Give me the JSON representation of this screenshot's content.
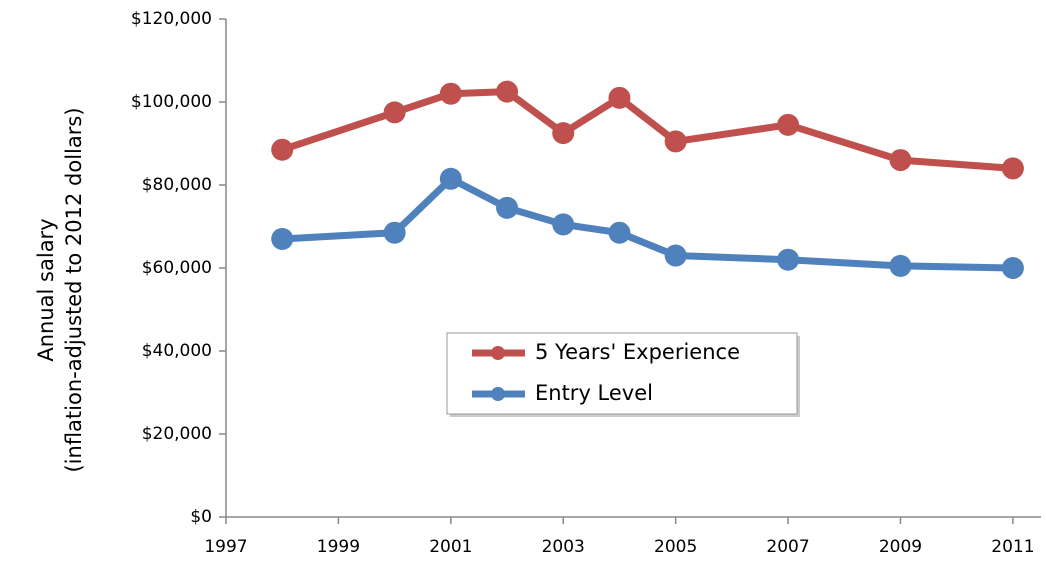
{
  "chart_data": {
    "type": "line",
    "ylabel": [
      "Annual salary",
      "(inflation-adjusted to 2012 dollars)"
    ],
    "x": [
      1998,
      2000,
      2001,
      2002,
      2003,
      2004,
      2005,
      2007,
      2009,
      2011
    ],
    "series": [
      {
        "name": "5 Years' Experience",
        "color": "#c0504d",
        "values": [
          88500,
          97500,
          102000,
          102500,
          92500,
          101000,
          90500,
          94500,
          86000,
          84000
        ]
      },
      {
        "name": "Entry Level",
        "color": "#4f81bd",
        "values": [
          67000,
          68500,
          81500,
          74500,
          70500,
          68500,
          63000,
          62000,
          60500,
          60000
        ]
      }
    ],
    "xlim": [
      1997,
      2011.5
    ],
    "xticks": [
      1997,
      1999,
      2001,
      2003,
      2005,
      2007,
      2009,
      2011
    ],
    "ylim": [
      0,
      120000
    ],
    "yticks": [
      {
        "value": 0,
        "label": "$0"
      },
      {
        "value": 20000,
        "label": "$20,000"
      },
      {
        "value": 40000,
        "label": "$40,000"
      },
      {
        "value": 60000,
        "label": "$60,000"
      },
      {
        "value": 80000,
        "label": "$80,000"
      },
      {
        "value": 100000,
        "label": "$100,000"
      },
      {
        "value": 120000,
        "label": "$120,000"
      }
    ],
    "grid": false,
    "legend": "center"
  }
}
